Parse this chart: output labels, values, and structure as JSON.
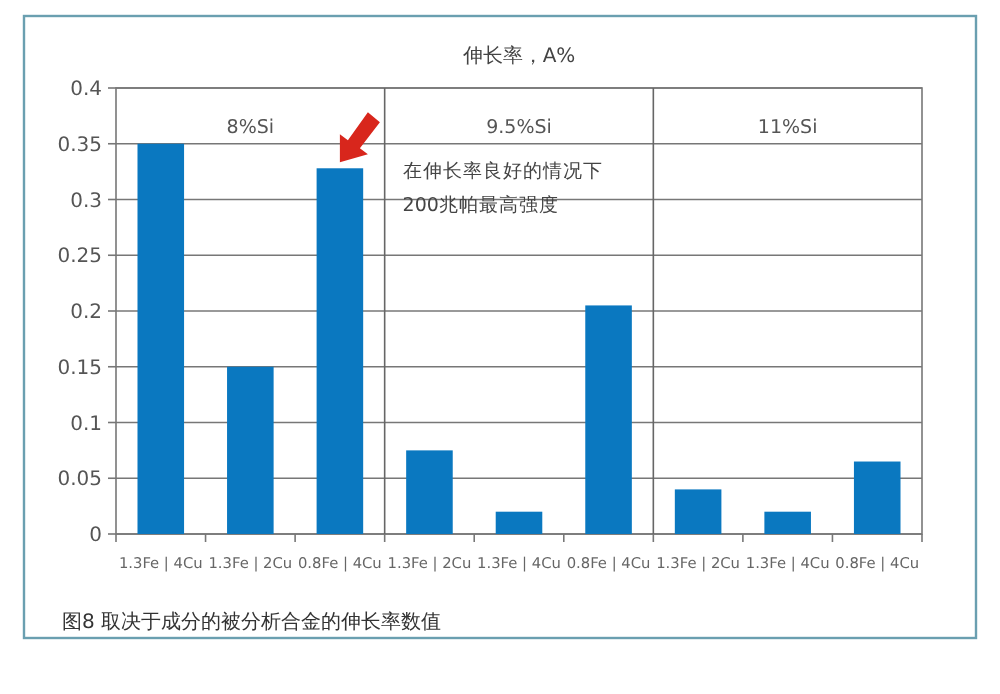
{
  "chart_data": {
    "type": "bar",
    "title": "伸长率，A%",
    "categories": [
      "1.3Fe | 4Cu",
      "1.3Fe | 2Cu",
      "0.8Fe | 4Cu",
      "1.3Fe | 2Cu",
      "1.3Fe | 4Cu",
      "0.8Fe | 4Cu",
      "1.3Fe | 2Cu",
      "1.3Fe | 4Cu",
      "0.8Fe | 4Cu"
    ],
    "values": [
      0.35,
      0.15,
      0.328,
      0.075,
      0.02,
      0.205,
      0.04,
      0.02,
      0.065
    ],
    "color": "#0a78c0",
    "ylim": [
      0,
      0.4
    ],
    "yticks": [
      0,
      0.05,
      0.1,
      0.15,
      0.2,
      0.25,
      0.3,
      0.35,
      0.4
    ],
    "grid": "y",
    "annotations": [
      "8%Si",
      "9.5%Si",
      "11%Si",
      "在伸长率良好的情况下\n200兆帕最高强度",
      "图8 取决于成分的被分析合金的伸长率数值"
    ]
  }
}
